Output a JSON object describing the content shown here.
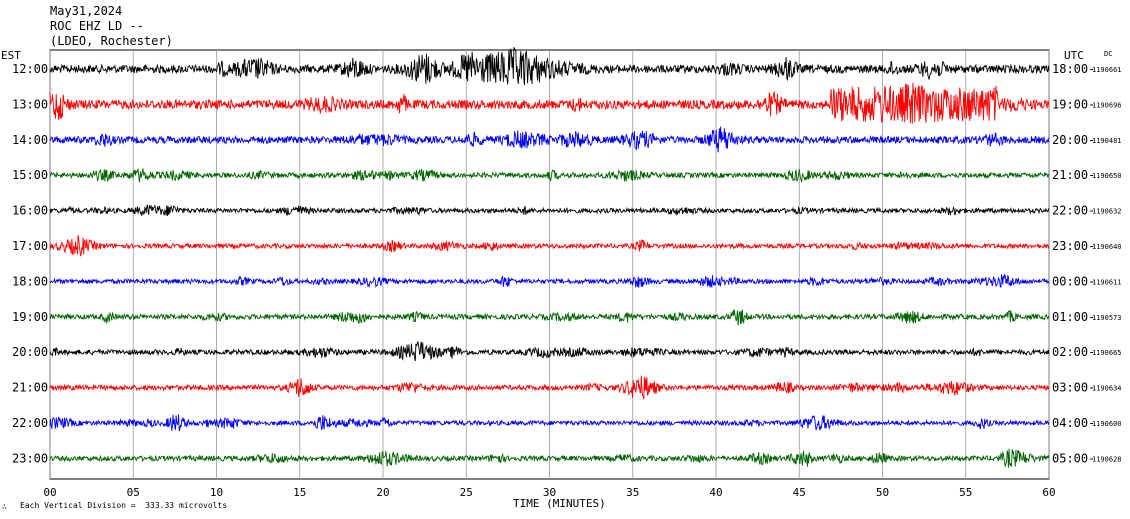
{
  "header": {
    "date": "May31,2024",
    "station": "ROC EHZ LD --",
    "network": "(LDEO, Rochester)"
  },
  "left_tz": "EST",
  "right_tz": "UTC",
  "dc_label": "DC",
  "footer": {
    "mark": "∴",
    "scale_text": "Each Vertical Division =  333.33 microvolts"
  },
  "chart_data": {
    "type": "line",
    "title": "",
    "xlabel": "TIME (MINUTES)",
    "ylabel": "",
    "xlim": [
      0,
      60
    ],
    "x_ticks": [
      "00",
      "05",
      "10",
      "15",
      "20",
      "25",
      "30",
      "35",
      "40",
      "45",
      "50",
      "55",
      "60"
    ],
    "grid": true,
    "colors": [
      "#000000",
      "#ff0000",
      "#0000ff",
      "#006400"
    ],
    "rows": [
      {
        "est": "12:00",
        "utc": "18:00",
        "dc": "1190661",
        "color": "#000000",
        "amplitude": 0.8
      },
      {
        "est": "13:00",
        "utc": "19:00",
        "dc": "1190696",
        "color": "#ff0000",
        "amplitude": 0.9
      },
      {
        "est": "14:00",
        "utc": "20:00",
        "dc": "1190481",
        "color": "#0000ff",
        "amplitude": 0.7
      },
      {
        "est": "15:00",
        "utc": "21:00",
        "dc": "1190650",
        "color": "#006400",
        "amplitude": 0.5
      },
      {
        "est": "16:00",
        "utc": "22:00",
        "dc": "1190632",
        "color": "#000000",
        "amplitude": 0.45
      },
      {
        "est": "17:00",
        "utc": "23:00",
        "dc": "1190640",
        "color": "#ff0000",
        "amplitude": 0.45
      },
      {
        "est": "18:00",
        "utc": "00:00",
        "dc": "1190611",
        "color": "#0000ff",
        "amplitude": 0.45
      },
      {
        "est": "19:00",
        "utc": "01:00",
        "dc": "1190573",
        "color": "#006400",
        "amplitude": 0.5
      },
      {
        "est": "20:00",
        "utc": "02:00",
        "dc": "1190665",
        "color": "#000000",
        "amplitude": 0.5
      },
      {
        "est": "21:00",
        "utc": "03:00",
        "dc": "1190634",
        "color": "#ff0000",
        "amplitude": 0.5
      },
      {
        "est": "22:00",
        "utc": "04:00",
        "dc": "1190600",
        "color": "#0000ff",
        "amplitude": 0.45
      },
      {
        "est": "23:00",
        "utc": "05:00",
        "dc": "1190628",
        "color": "#006400",
        "amplitude": 0.5
      }
    ]
  }
}
